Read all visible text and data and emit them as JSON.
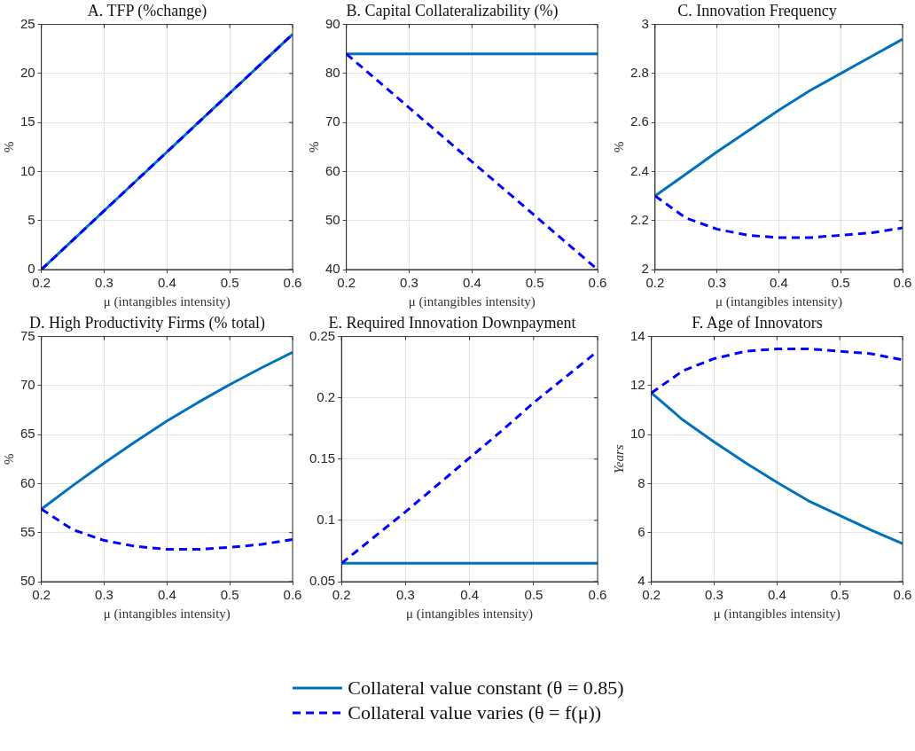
{
  "chart_data": [
    {
      "type": "line",
      "title": "A. TFP (%change)",
      "xlabel": "μ (intangibles intensity)",
      "ylabel": "%",
      "x": [
        0.2,
        0.25,
        0.3,
        0.35,
        0.4,
        0.45,
        0.5,
        0.55,
        0.6
      ],
      "xlim": [
        0.2,
        0.6
      ],
      "xticks": [
        0.2,
        0.3,
        0.4,
        0.5,
        0.6
      ],
      "ylim": [
        0,
        25
      ],
      "yticks": [
        0,
        5,
        10,
        15,
        20,
        25
      ],
      "grid": true,
      "series": [
        {
          "color": "#0072bd",
          "line_style": "solid",
          "values": [
            0,
            3,
            6,
            9,
            12,
            15,
            18,
            21,
            24
          ]
        },
        {
          "color": "#0000ff",
          "line_style": "dashed",
          "values": [
            0,
            3,
            6,
            9,
            12,
            15,
            18,
            21,
            24
          ]
        }
      ]
    },
    {
      "type": "line",
      "title": "B. Capital Collateralizability (%)",
      "xlabel": "μ (intangibles intensity)",
      "ylabel": "%",
      "x": [
        0.2,
        0.25,
        0.3,
        0.35,
        0.4,
        0.45,
        0.5,
        0.55,
        0.6
      ],
      "xlim": [
        0.2,
        0.6
      ],
      "xticks": [
        0.2,
        0.3,
        0.4,
        0.5,
        0.6
      ],
      "ylim": [
        40,
        90
      ],
      "yticks": [
        40,
        50,
        60,
        70,
        80,
        90
      ],
      "grid": true,
      "series": [
        {
          "color": "#0072bd",
          "line_style": "solid",
          "values": [
            84,
            84,
            84,
            84,
            84,
            84,
            84,
            84,
            84
          ]
        },
        {
          "color": "#0000ff",
          "line_style": "dashed",
          "values": [
            84,
            78.5,
            73,
            67.5,
            62,
            56.5,
            51,
            45.5,
            40
          ]
        }
      ]
    },
    {
      "type": "line",
      "title": "C. Innovation Frequency",
      "xlabel": "μ (intangibles intensity)",
      "ylabel": "%",
      "x": [
        0.2,
        0.25,
        0.3,
        0.35,
        0.4,
        0.45,
        0.5,
        0.55,
        0.6
      ],
      "xlim": [
        0.2,
        0.6
      ],
      "xticks": [
        0.2,
        0.3,
        0.4,
        0.5,
        0.6
      ],
      "ylim": [
        2,
        3
      ],
      "yticks": [
        2,
        2.2,
        2.4,
        2.6,
        2.8,
        3
      ],
      "grid": true,
      "series": [
        {
          "color": "#0072bd",
          "line_style": "solid",
          "values": [
            2.3,
            2.39,
            2.48,
            2.565,
            2.65,
            2.73,
            2.8,
            2.87,
            2.94
          ]
        },
        {
          "color": "#0000ff",
          "line_style": "dashed",
          "values": [
            2.3,
            2.21,
            2.165,
            2.14,
            2.13,
            2.13,
            2.14,
            2.15,
            2.17
          ]
        }
      ]
    },
    {
      "type": "line",
      "title": "D. High Productivity Firms (% total)",
      "xlabel": "μ (intangibles intensity)",
      "ylabel": "%",
      "x": [
        0.2,
        0.25,
        0.3,
        0.35,
        0.4,
        0.45,
        0.5,
        0.55,
        0.6
      ],
      "xlim": [
        0.2,
        0.6
      ],
      "xticks": [
        0.2,
        0.3,
        0.4,
        0.5,
        0.6
      ],
      "ylim": [
        50,
        75
      ],
      "yticks": [
        50,
        55,
        60,
        65,
        70,
        75
      ],
      "grid": true,
      "series": [
        {
          "color": "#0072bd",
          "line_style": "solid",
          "values": [
            57.4,
            59.8,
            62.1,
            64.3,
            66.4,
            68.3,
            70.1,
            71.8,
            73.4
          ]
        },
        {
          "color": "#0000ff",
          "line_style": "dashed",
          "values": [
            57.4,
            55.3,
            54.2,
            53.6,
            53.3,
            53.3,
            53.5,
            53.8,
            54.3
          ]
        }
      ]
    },
    {
      "type": "line",
      "title": "E. Required Innovation Downpayment",
      "xlabel": "μ (intangibles intensity)",
      "x": [
        0.2,
        0.25,
        0.3,
        0.35,
        0.4,
        0.45,
        0.5,
        0.55,
        0.6
      ],
      "xlim": [
        0.2,
        0.6
      ],
      "xticks": [
        0.2,
        0.3,
        0.4,
        0.5,
        0.6
      ],
      "ylim": [
        0.05,
        0.25
      ],
      "yticks": [
        0.05,
        0.1,
        0.15,
        0.2,
        0.25
      ],
      "grid": true,
      "series": [
        {
          "color": "#0072bd",
          "line_style": "solid",
          "values": [
            0.065,
            0.065,
            0.065,
            0.065,
            0.065,
            0.065,
            0.065,
            0.065,
            0.065
          ]
        },
        {
          "color": "#0000ff",
          "line_style": "dashed",
          "values": [
            0.065,
            0.086,
            0.107,
            0.129,
            0.151,
            0.173,
            0.196,
            0.217,
            0.238
          ]
        }
      ]
    },
    {
      "type": "line",
      "title": "F. Age of Innovators",
      "xlabel": "μ (intangibles intensity)",
      "ylabel": "Years",
      "x": [
        0.2,
        0.25,
        0.3,
        0.35,
        0.4,
        0.45,
        0.5,
        0.55,
        0.6
      ],
      "xlim": [
        0.2,
        0.6
      ],
      "xticks": [
        0.2,
        0.3,
        0.4,
        0.5,
        0.6
      ],
      "ylim": [
        4,
        14
      ],
      "yticks": [
        4,
        6,
        8,
        10,
        12,
        14
      ],
      "grid": true,
      "legend": "bottom",
      "series": [
        {
          "name": "Collateral value constant (θ = 0.85)",
          "color": "#0072bd",
          "line_style": "solid",
          "values": [
            11.7,
            10.6,
            9.7,
            8.85,
            8.05,
            7.3,
            6.7,
            6.1,
            5.55
          ]
        },
        {
          "name": "Collateral value varies (θ = f(μ))",
          "color": "#0000ff",
          "line_style": "dashed",
          "values": [
            11.7,
            12.6,
            13.1,
            13.4,
            13.5,
            13.5,
            13.4,
            13.3,
            13.05
          ]
        }
      ]
    }
  ]
}
